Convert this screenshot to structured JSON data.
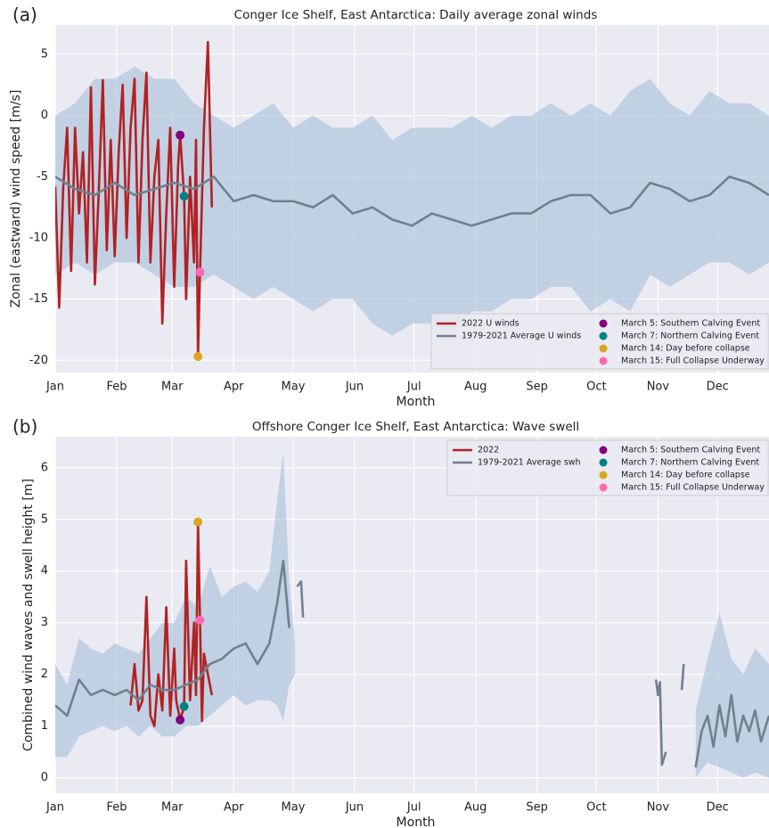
{
  "chart_data": [
    {
      "type": "line",
      "panel_label": "(a)",
      "title": "Conger Ice Shelf, East Antarctica: Daily average zonal winds",
      "xlabel": "Month",
      "ylabel": "Zonal (eastward) wind speed [m/s]",
      "xlim": [
        1,
        361
      ],
      "ylim": [
        -21,
        7.4
      ],
      "xticks": [
        {
          "value": 1,
          "label": "Jan"
        },
        {
          "value": 32,
          "label": "Feb"
        },
        {
          "value": 60,
          "label": "Mar"
        },
        {
          "value": 91,
          "label": "Apr"
        },
        {
          "value": 121,
          "label": "May"
        },
        {
          "value": 152,
          "label": "Jun"
        },
        {
          "value": 182,
          "label": "Jul"
        },
        {
          "value": 213,
          "label": "Aug"
        },
        {
          "value": 244,
          "label": "Sep"
        },
        {
          "value": 274,
          "label": "Oct"
        },
        {
          "value": 305,
          "label": "Nov"
        },
        {
          "value": 335,
          "label": "Dec"
        }
      ],
      "yticks": [
        -20,
        -15,
        -10,
        -5,
        0,
        5
      ],
      "grid": true,
      "legend": "lower right",
      "band": {
        "color": "#b0c4de",
        "x": [
          1,
          11,
          21,
          31,
          41,
          51,
          61,
          71,
          81,
          91,
          101,
          111,
          121,
          131,
          141,
          151,
          161,
          171,
          181,
          191,
          201,
          211,
          221,
          231,
          241,
          251,
          261,
          271,
          281,
          291,
          301,
          311,
          321,
          331,
          341,
          351,
          361
        ],
        "upper": [
          0,
          1,
          3,
          3,
          4,
          3,
          3,
          1,
          0,
          -1,
          0,
          1,
          -1,
          0,
          -1,
          -1,
          0,
          -2,
          -1,
          -1,
          -1,
          0,
          -1,
          0,
          0,
          1,
          0,
          1,
          0,
          2,
          3,
          1,
          0,
          2,
          1,
          1,
          0
        ],
        "lower": [
          -13,
          -12,
          -13,
          -12,
          -12,
          -13,
          -14,
          -14,
          -13,
          -14,
          -15,
          -14,
          -15,
          -16,
          -15,
          -15,
          -17,
          -18,
          -17,
          -17,
          -18,
          -16,
          -16,
          -15,
          -15,
          -14,
          -14,
          -16,
          -15,
          -16,
          -13,
          -14,
          -13,
          -12,
          -12,
          -13,
          -12
        ]
      },
      "series": [
        {
          "name": "2022 U winds",
          "style": "line",
          "color": "#b22222",
          "x": [
            1,
            3,
            5,
            7,
            9,
            11,
            13,
            15,
            17,
            19,
            21,
            23,
            25,
            27,
            29,
            31,
            33,
            35,
            37,
            39,
            41,
            43,
            45,
            47,
            49,
            51,
            53,
            55,
            57,
            59,
            61,
            63,
            64,
            66,
            67,
            69,
            71,
            72,
            73,
            74,
            76,
            78,
            80
          ],
          "values": [
            -5.8,
            -15.7,
            -6,
            -1,
            -12.7,
            -1,
            -8,
            -3,
            -12,
            2.3,
            -13.8,
            -6,
            2.9,
            -11,
            -2,
            -11.5,
            -3,
            2.5,
            -10,
            -1,
            3,
            -12,
            -2,
            3.5,
            -12,
            -5,
            -2,
            -17,
            -8,
            -1,
            -14,
            -4,
            -1.6,
            -6.6,
            -15,
            -5,
            -12,
            -2,
            -19.7,
            -12.8,
            -1,
            6,
            -7.5
          ]
        },
        {
          "name": "1979-2021 Average U winds",
          "style": "line",
          "color": "#708090",
          "x": [
            1,
            11,
            21,
            31,
            41,
            51,
            61,
            71,
            81,
            91,
            101,
            111,
            121,
            131,
            141,
            151,
            161,
            171,
            181,
            191,
            201,
            211,
            221,
            231,
            241,
            251,
            261,
            271,
            281,
            291,
            301,
            311,
            321,
            331,
            341,
            351,
            361
          ],
          "values": [
            -5,
            -6,
            -6.5,
            -5.5,
            -6.5,
            -6,
            -5.5,
            -6,
            -5,
            -7,
            -6.5,
            -7,
            -7,
            -7.5,
            -6.5,
            -8,
            -7.5,
            -8.5,
            -9,
            -8,
            -8.5,
            -9,
            -8.5,
            -8,
            -8,
            -7,
            -6.5,
            -6.5,
            -8,
            -7.5,
            -5.5,
            -6,
            -7,
            -6.5,
            -5,
            -5.5,
            -6.5
          ]
        },
        {
          "name": "March 5: Southern Calving Event",
          "style": "point",
          "color": "#800080",
          "x": [
            64
          ],
          "values": [
            -1.6
          ]
        },
        {
          "name": "March 7: Northern Calving Event",
          "style": "point",
          "color": "#008080",
          "x": [
            66
          ],
          "values": [
            -6.6
          ]
        },
        {
          "name": "March 14: Day before collapse",
          "style": "point",
          "color": "#daa520",
          "x": [
            73
          ],
          "values": [
            -19.7
          ]
        },
        {
          "name": "March 15: Full Collapse Underway",
          "style": "point",
          "color": "#ff69b4",
          "x": [
            74
          ],
          "values": [
            -12.8
          ]
        }
      ]
    },
    {
      "type": "line",
      "panel_label": "(b)",
      "title": "Offshore Conger Ice Shelf, East Antarctica: Wave swell",
      "xlabel": "Month",
      "ylabel": "Combined wind waves and swell height [m]",
      "xlim": [
        1,
        361
      ],
      "ylim": [
        -0.3,
        6.6
      ],
      "xticks": [
        {
          "value": 1,
          "label": "Jan"
        },
        {
          "value": 32,
          "label": "Feb"
        },
        {
          "value": 60,
          "label": "Mar"
        },
        {
          "value": 91,
          "label": "Apr"
        },
        {
          "value": 121,
          "label": "May"
        },
        {
          "value": 152,
          "label": "Jun"
        },
        {
          "value": 182,
          "label": "Jul"
        },
        {
          "value": 213,
          "label": "Aug"
        },
        {
          "value": 244,
          "label": "Sep"
        },
        {
          "value": 274,
          "label": "Oct"
        },
        {
          "value": 305,
          "label": "Nov"
        },
        {
          "value": 335,
          "label": "Dec"
        }
      ],
      "yticks": [
        0,
        1,
        2,
        3,
        4,
        5,
        6
      ],
      "grid": true,
      "legend": "upper right",
      "band": {
        "color": "#b0c4de",
        "x": [
          1,
          7,
          13,
          19,
          25,
          31,
          37,
          43,
          49,
          55,
          61,
          67,
          73,
          79,
          85,
          91,
          97,
          103,
          109,
          113,
          116,
          119,
          122,
          123,
          324,
          330,
          336,
          342,
          348,
          354,
          361
        ],
        "upper": [
          2.2,
          1.8,
          2.7,
          2.5,
          2.4,
          2.6,
          2.5,
          2.4,
          2.7,
          3.0,
          3.0,
          3.5,
          3.3,
          4.1,
          3.5,
          3.7,
          3.8,
          3.6,
          4.0,
          5.4,
          6.3,
          3.8,
          2.6,
          null,
          1.3,
          2.3,
          3.2,
          2.3,
          2.0,
          2.5,
          2.2
        ],
        "lower": [
          0.4,
          0.4,
          0.8,
          0.9,
          1.0,
          0.9,
          1.0,
          0.8,
          1.0,
          0.8,
          0.8,
          1.0,
          1.0,
          1.2,
          1.4,
          1.6,
          1.4,
          1.5,
          1.5,
          1.4,
          1.1,
          1.8,
          2.0,
          null,
          0.0,
          0.3,
          0.2,
          0.1,
          0.0,
          0.1,
          0.0
        ]
      },
      "series": [
        {
          "name": "2022",
          "style": "line",
          "color": "#b22222",
          "x": [
            39,
            41,
            43,
            45,
            47,
            49,
            51,
            53,
            55,
            57,
            59,
            61,
            62,
            64,
            66,
            67,
            69,
            71,
            72,
            73,
            74,
            75,
            76,
            78,
            80
          ],
          "values": [
            1.4,
            2.2,
            1.3,
            1.5,
            3.5,
            1.2,
            1.0,
            2.0,
            1.3,
            3.3,
            1.2,
            2.5,
            1.5,
            1.12,
            1.38,
            4.2,
            1.5,
            3.0,
            1.6,
            4.95,
            3.05,
            1.1,
            2.4,
            2.0,
            1.6
          ]
        },
        {
          "name": "1979-2021 Average swh",
          "style": "line",
          "color": "#708090",
          "x": [
            1,
            7,
            13,
            19,
            25,
            31,
            37,
            43,
            49,
            55,
            61,
            67,
            73,
            79,
            85,
            91,
            97,
            103,
            109,
            113,
            116,
            119,
            121,
            123,
            125,
            126,
            128,
            304,
            305,
            306,
            307,
            309,
            312,
            317,
            318,
            322,
            324,
            327,
            330,
            333,
            336,
            339,
            342,
            345,
            348,
            351,
            354,
            357,
            361
          ],
          "values": [
            1.4,
            1.2,
            1.9,
            1.6,
            1.7,
            1.6,
            1.7,
            1.5,
            1.8,
            1.7,
            1.7,
            1.8,
            1.9,
            2.2,
            2.3,
            2.5,
            2.6,
            2.2,
            2.6,
            3.4,
            4.2,
            2.9,
            null,
            3.7,
            3.8,
            3.1,
            null,
            1.9,
            1.6,
            1.85,
            0.25,
            0.5,
            null,
            1.7,
            2.2,
            null,
            0.2,
            0.9,
            1.2,
            0.6,
            1.4,
            0.8,
            1.6,
            0.7,
            1.2,
            0.9,
            1.3,
            0.7,
            1.2
          ]
        },
        {
          "name": "March 5: Southern Calving Event",
          "style": "point",
          "color": "#800080",
          "x": [
            64
          ],
          "values": [
            1.12
          ]
        },
        {
          "name": "March 7: Northern Calving Event",
          "style": "point",
          "color": "#008080",
          "x": [
            66
          ],
          "values": [
            1.38
          ]
        },
        {
          "name": "March 14: Day before collapse",
          "style": "point",
          "color": "#daa520",
          "x": [
            73
          ],
          "values": [
            4.95
          ]
        },
        {
          "name": "March 15: Full Collapse Underway",
          "style": "point",
          "color": "#ff69b4",
          "x": [
            74
          ],
          "values": [
            3.05
          ]
        }
      ]
    }
  ]
}
